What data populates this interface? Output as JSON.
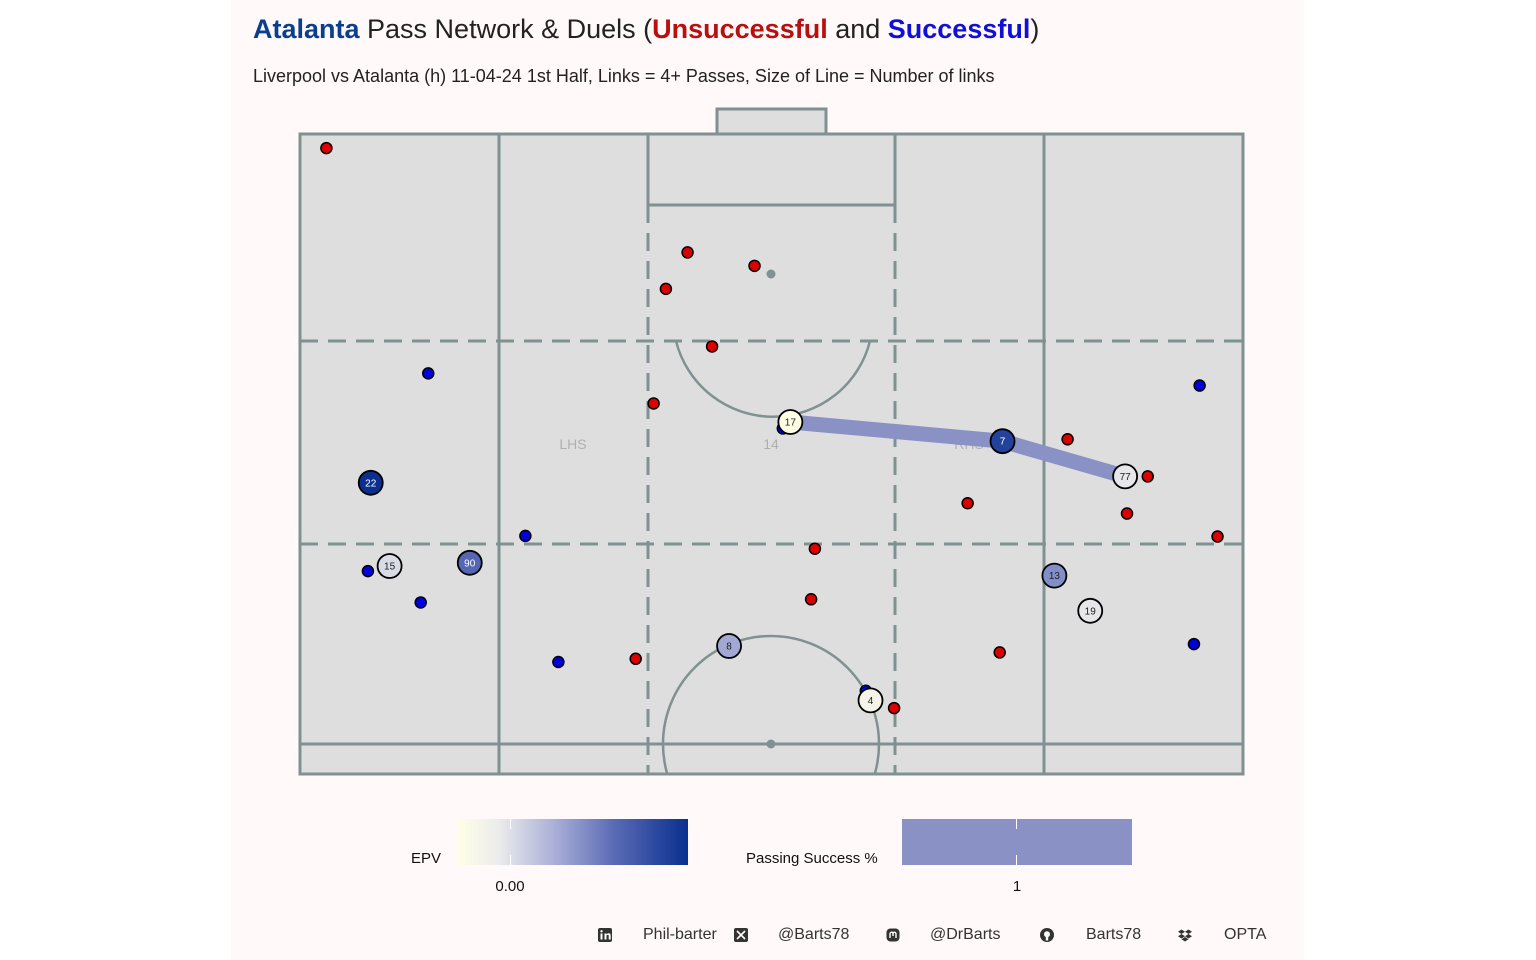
{
  "title": {
    "team": "Atalanta",
    "middle": " Pass Network & Duels (",
    "unsuccessful": "Unsuccessful",
    "and": " and ",
    "successful": "Successful",
    "close": ")"
  },
  "subtitle": "Liverpool vs Atalanta (h) 11-04-24 1st Half, Links = 4+ Passes, Size of Line = Number of links",
  "colors": {
    "unsuccessful": "#dd0000",
    "successful": "#0000dd",
    "epv_high": "#0a2f8f",
    "epv_low": "#ffffe6",
    "link": "#8a91c4",
    "pitch": "#dedede",
    "pitch_lines": "#7f9191"
  },
  "chart_data": {
    "type": "scatter",
    "pitch_zones": [
      "LHS",
      "14",
      "RHS"
    ],
    "link": {
      "from": "17",
      "to": "77",
      "via": "7",
      "passing_success": 1
    },
    "players": [
      {
        "number": "17",
        "epv": 0.0,
        "x": 0.52,
        "y": 0.45
      },
      {
        "number": "7",
        "epv": 0.9,
        "x": 0.745,
        "y": 0.48
      },
      {
        "number": "77",
        "epv": 0.2,
        "x": 0.875,
        "y": 0.535
      },
      {
        "number": "22",
        "epv": 1.0,
        "x": 0.075,
        "y": 0.545
      },
      {
        "number": "15",
        "epv": 0.25,
        "x": 0.095,
        "y": 0.675
      },
      {
        "number": "90",
        "epv": 0.7,
        "x": 0.18,
        "y": 0.67
      },
      {
        "number": "13",
        "epv": 0.55,
        "x": 0.8,
        "y": 0.69
      },
      {
        "number": "19",
        "epv": 0.2,
        "x": 0.838,
        "y": 0.745
      },
      {
        "number": "8",
        "epv": 0.45,
        "x": 0.455,
        "y": 0.8
      },
      {
        "number": "4",
        "epv": 0.1,
        "x": 0.605,
        "y": 0.885
      }
    ],
    "unsuccessful_duels": [
      {
        "x": 0.028,
        "y": 0.022
      },
      {
        "x": 0.411,
        "y": 0.185
      },
      {
        "x": 0.482,
        "y": 0.206
      },
      {
        "x": 0.388,
        "y": 0.242
      },
      {
        "x": 0.437,
        "y": 0.332
      },
      {
        "x": 0.375,
        "y": 0.421
      },
      {
        "x": 0.814,
        "y": 0.477
      },
      {
        "x": 0.899,
        "y": 0.535
      },
      {
        "x": 0.708,
        "y": 0.577
      },
      {
        "x": 0.877,
        "y": 0.593
      },
      {
        "x": 0.973,
        "y": 0.629
      },
      {
        "x": 0.546,
        "y": 0.648
      },
      {
        "x": 0.542,
        "y": 0.727
      },
      {
        "x": 0.356,
        "y": 0.82
      },
      {
        "x": 0.742,
        "y": 0.81
      },
      {
        "x": 0.63,
        "y": 0.897
      }
    ],
    "successful_duels": [
      {
        "x": 0.136,
        "y": 0.374
      },
      {
        "x": 0.512,
        "y": 0.46
      },
      {
        "x": 0.954,
        "y": 0.393
      },
      {
        "x": 0.239,
        "y": 0.628
      },
      {
        "x": 0.072,
        "y": 0.683
      },
      {
        "x": 0.128,
        "y": 0.732
      },
      {
        "x": 0.274,
        "y": 0.825
      },
      {
        "x": 0.6,
        "y": 0.87
      },
      {
        "x": 0.948,
        "y": 0.797
      }
    ]
  },
  "legend": {
    "epv_label": "EPV",
    "epv_tick": "0.00",
    "pass_label": "Passing Success %",
    "pass_tick": "1"
  },
  "footer": {
    "linkedin": "Phil-barter",
    "x": "@Barts78",
    "mastodon": "@DrBarts",
    "github": "Barts78",
    "source": "OPTA"
  }
}
